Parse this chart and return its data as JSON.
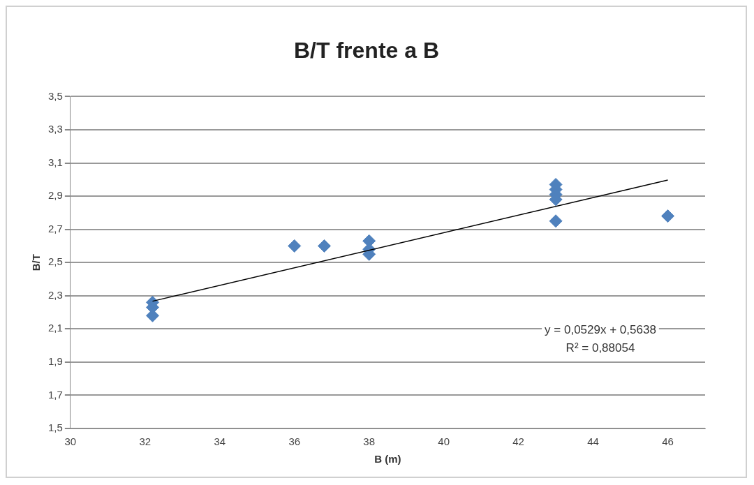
{
  "chart_data": {
    "type": "scatter",
    "title": "B/T frente a B",
    "xlabel": "B (m)",
    "ylabel": "B/T",
    "x": [
      32.2,
      32.2,
      32.2,
      36,
      36.8,
      38,
      38,
      38,
      43,
      43,
      43,
      43,
      43,
      46
    ],
    "series": [
      {
        "type": "scatter",
        "color": "#4f81bd",
        "values": [
          2.18,
          2.23,
          2.26,
          2.6,
          2.6,
          2.63,
          2.58,
          2.55,
          2.97,
          2.94,
          2.91,
          2.88,
          2.75,
          2.78
        ]
      },
      {
        "type": "line",
        "color": "#000000",
        "x": [
          32.2,
          46
        ],
        "values": [
          2.267,
          2.997
        ],
        "marker": "none"
      }
    ],
    "xlim": [
      30,
      47
    ],
    "xticks": [
      30,
      32,
      34,
      36,
      38,
      40,
      42,
      44,
      46
    ],
    "ylim": [
      1.5,
      3.5
    ],
    "yticks": [
      {
        "value": 1.5,
        "label": "1,5"
      },
      {
        "value": 1.7,
        "label": "1,7"
      },
      {
        "value": 1.9,
        "label": "1,9"
      },
      {
        "value": 2.1,
        "label": "2,1"
      },
      {
        "value": 2.3,
        "label": "2,3"
      },
      {
        "value": 2.5,
        "label": "2,5"
      },
      {
        "value": 2.7,
        "label": "2,7"
      },
      {
        "value": 2.9,
        "label": "2,9"
      },
      {
        "value": 3.1,
        "label": "3,1"
      },
      {
        "value": 3.3,
        "label": "3,3"
      },
      {
        "value": 3.5,
        "label": "3,5"
      }
    ],
    "grid": "y",
    "legend": false,
    "marker": "diamond",
    "annotations": [
      "y = 0,0529x + 0,5638",
      "R² = 0,88054"
    ]
  }
}
